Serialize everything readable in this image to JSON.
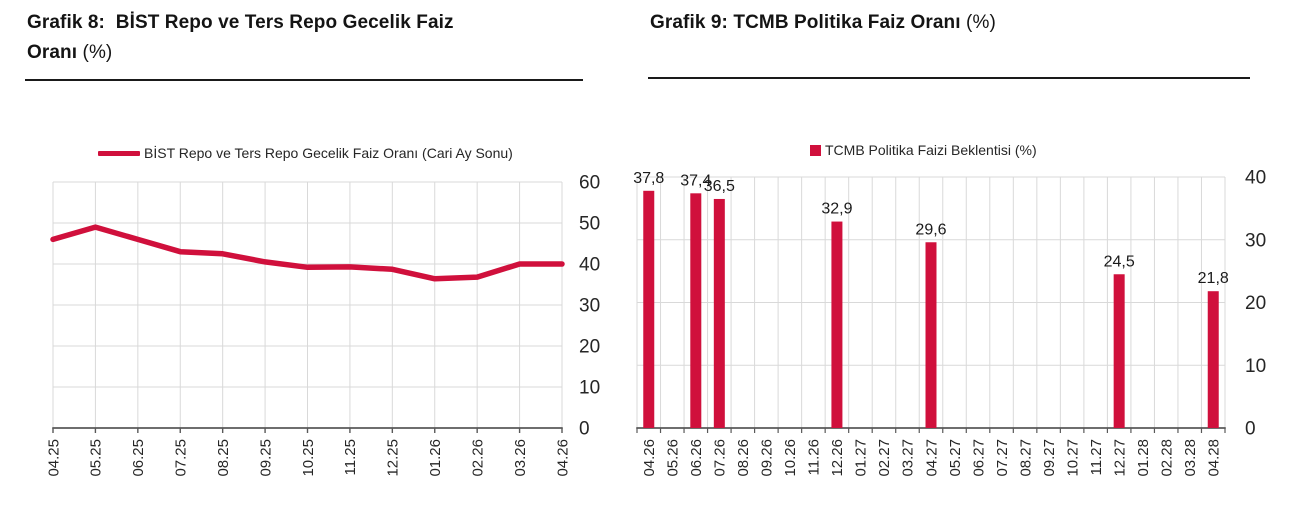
{
  "colors": {
    "accent": "#D0103C",
    "grid": "#D9D9D9",
    "axis": "#595959",
    "tick_text": "#262626",
    "title_text": "#141414"
  },
  "chart_data": [
    {
      "type": "line",
      "title_line1": "Grafik 8:  BİST Repo ve Ters Repo Gecelik Faiz",
      "title_line2_bold": "Oranı",
      "title_suffix": "(%)",
      "legend": "BİST Repo ve Ters Repo Gecelik Faiz Oranı (Cari Ay Sonu)",
      "categories": [
        "04.25",
        "05.25",
        "06.25",
        "07.25",
        "08.25",
        "09.25",
        "10.25",
        "11.25",
        "12.25",
        "01.26",
        "02.26",
        "03.26",
        "04.26"
      ],
      "values": [
        46,
        49,
        46,
        43,
        42.5,
        40.5,
        39.2,
        39.3,
        38.7,
        36.4,
        36.8,
        40,
        40
      ],
      "xlabel": "",
      "ylabel": "",
      "ylim": [
        0,
        60
      ],
      "yticks": [
        0,
        10,
        20,
        30,
        40,
        50,
        60
      ],
      "y_axis_side": "right",
      "grid": true,
      "legend_position": "top",
      "series_color": "#D0103C"
    },
    {
      "type": "bar",
      "title_bold": "Grafik 9: TCMB Politika Faiz Oranı",
      "title_suffix": "(%)",
      "legend": "TCMB Politika Faizi Beklentisi (%)",
      "categories": [
        "04.26",
        "05.26",
        "06.26",
        "07.26",
        "08.26",
        "09.26",
        "10.26",
        "11.26",
        "12.26",
        "01.27",
        "02.27",
        "03.27",
        "04.27",
        "05.27",
        "06.27",
        "07.27",
        "08.27",
        "09.27",
        "10.27",
        "11.27",
        "12.27",
        "01.28",
        "02.28",
        "03.28",
        "04.28"
      ],
      "bars": [
        {
          "category": "04.26",
          "value": 37.8,
          "label": "37,8"
        },
        {
          "category": "06.26",
          "value": 37.4,
          "label": "37,4"
        },
        {
          "category": "07.26",
          "value": 36.5,
          "label": "36,5"
        },
        {
          "category": "12.26",
          "value": 32.9,
          "label": "32,9"
        },
        {
          "category": "04.27",
          "value": 29.6,
          "label": "29,6"
        },
        {
          "category": "12.27",
          "value": 24.5,
          "label": "24,5"
        },
        {
          "category": "04.28",
          "value": 21.8,
          "label": "21,8"
        }
      ],
      "xlabel": "",
      "ylabel": "",
      "ylim": [
        0,
        40
      ],
      "yticks": [
        0,
        10,
        20,
        30,
        40
      ],
      "y_axis_side": "right",
      "grid": true,
      "legend_position": "top",
      "series_color": "#D0103C"
    }
  ]
}
